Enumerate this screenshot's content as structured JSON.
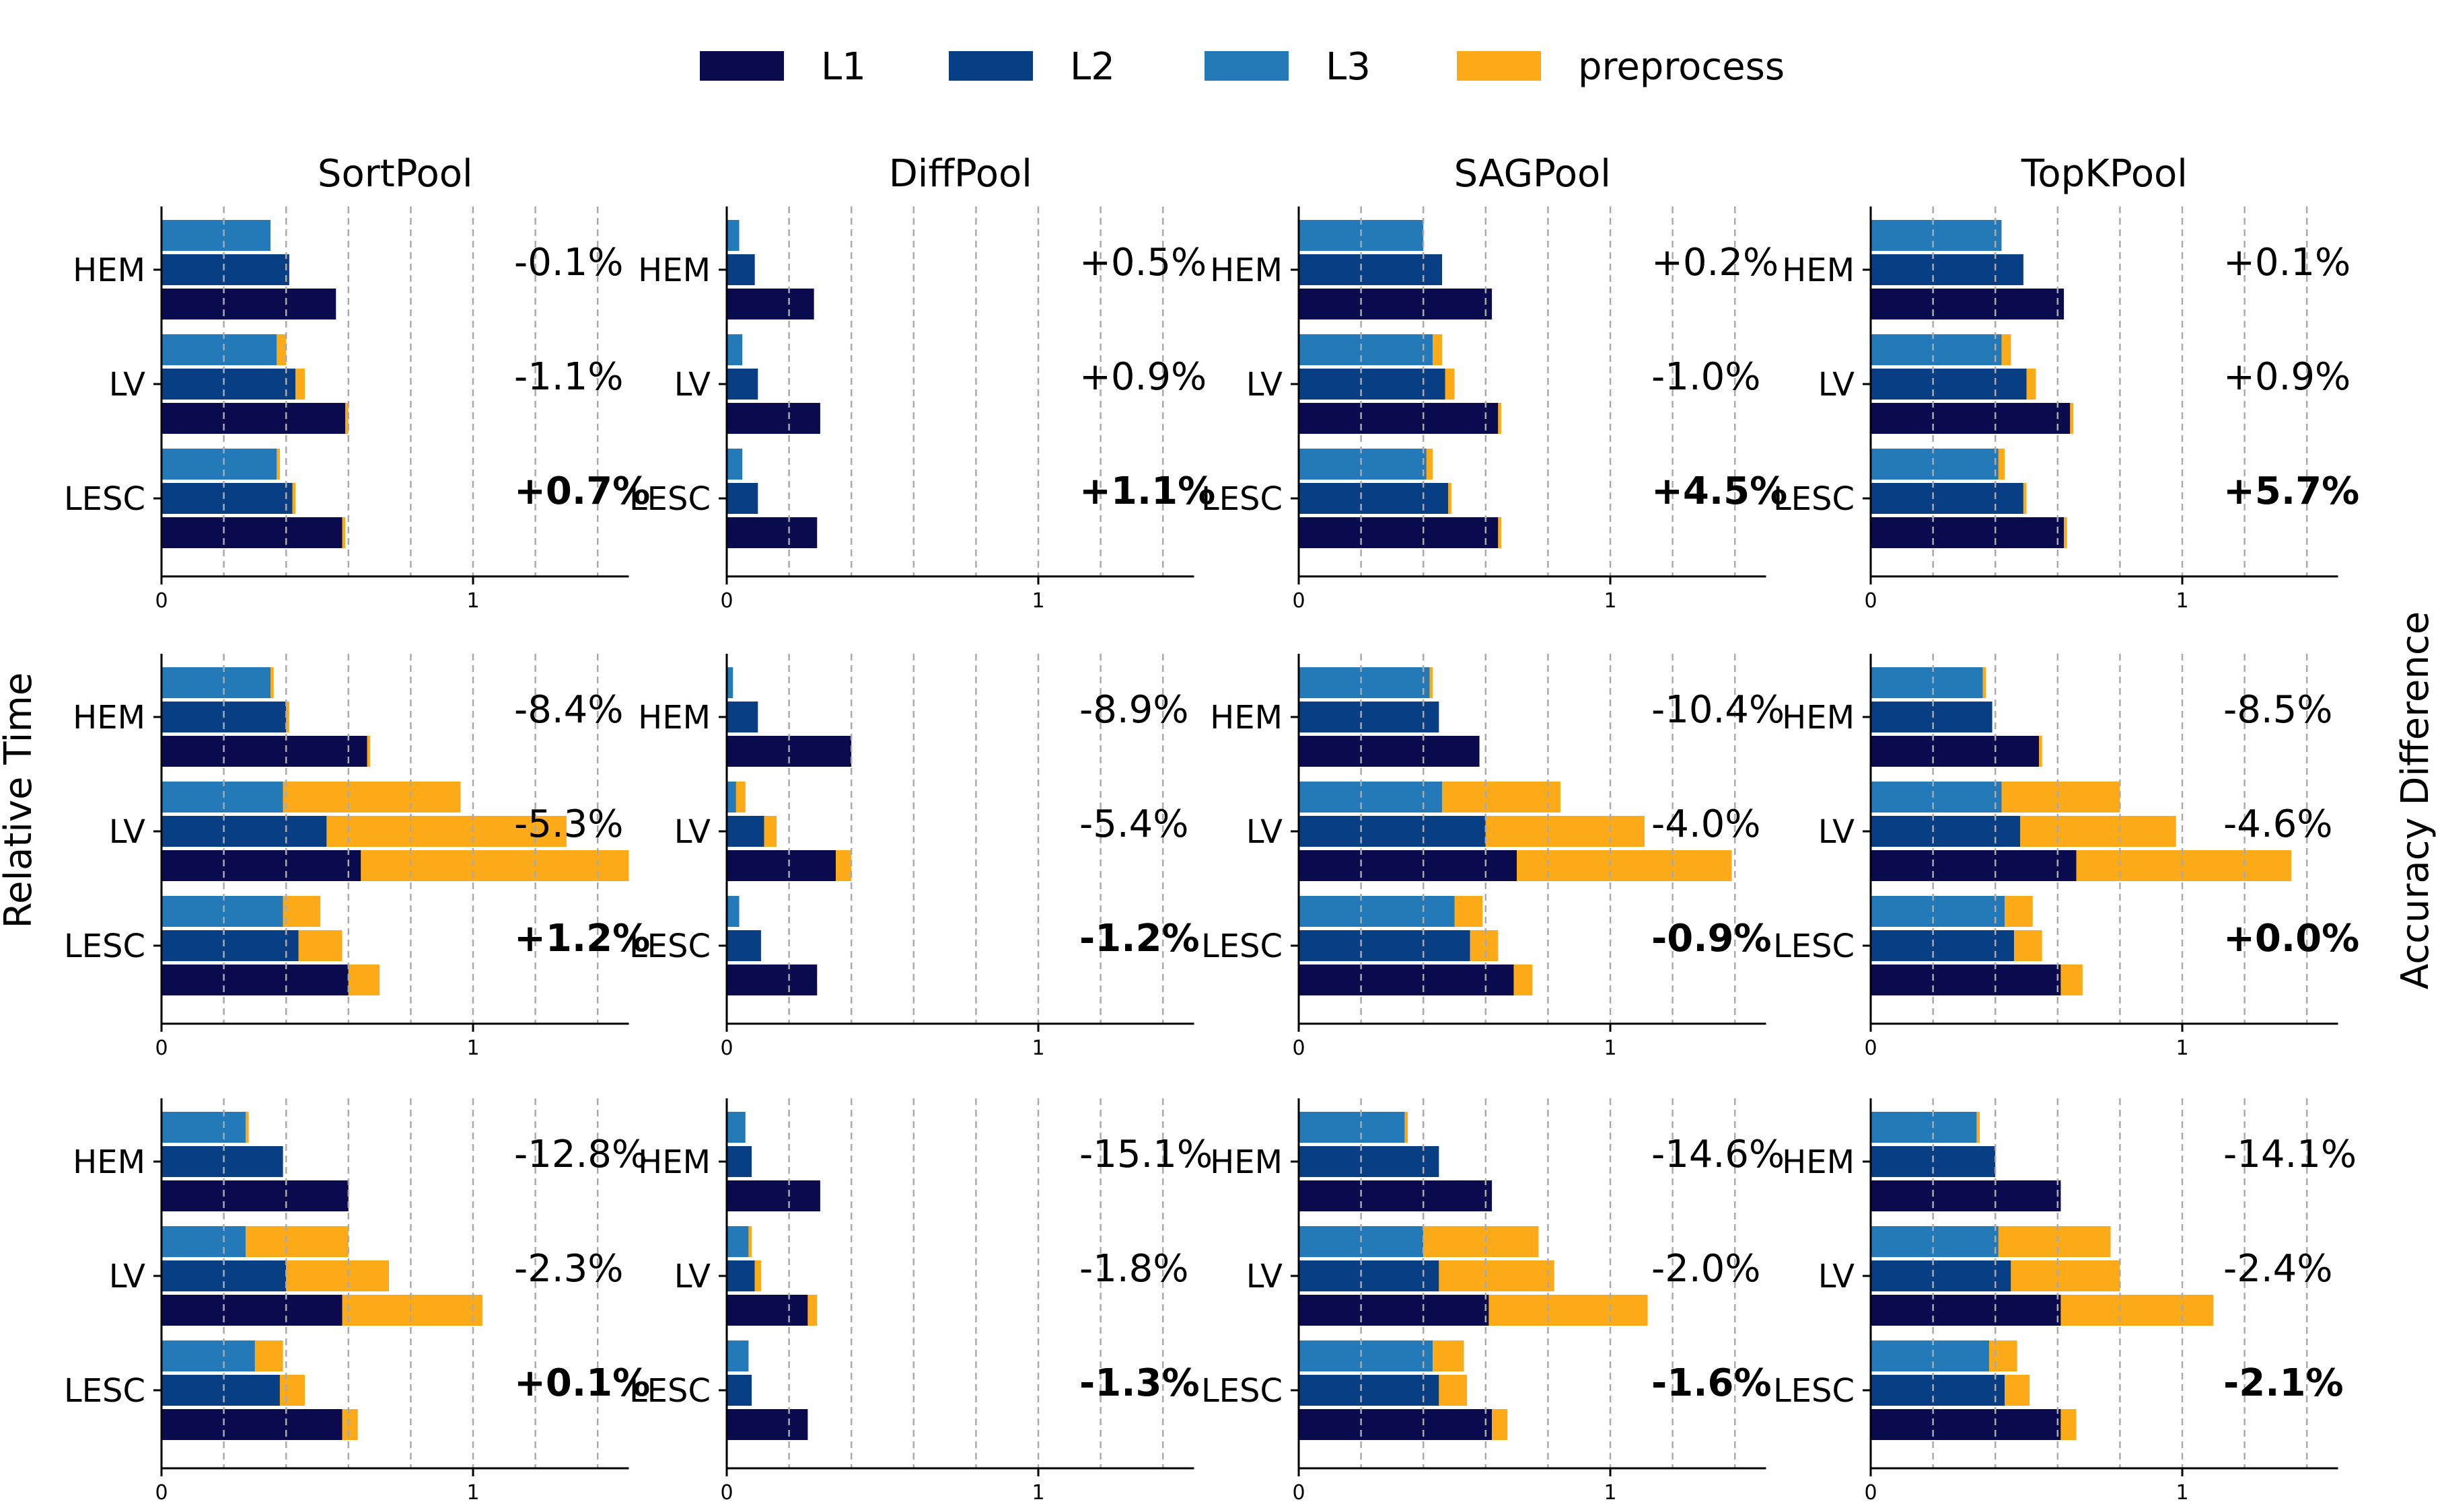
{
  "chart_data": {
    "type": "bar",
    "orientation": "horizontal",
    "stacked": true,
    "ylabel_left": "Relative Time",
    "ylabel_right": "Accuracy Difference",
    "legend": [
      {
        "name": "L1",
        "color": "#0a0a4f"
      },
      {
        "name": "L2",
        "color": "#073e84"
      },
      {
        "name": "L3",
        "color": "#2479b9"
      },
      {
        "name": "preprocess",
        "color": "#fcaa17"
      }
    ],
    "categories": [
      "HEM",
      "LV",
      "LESC"
    ],
    "layers": [
      "L3",
      "L2",
      "L1"
    ],
    "xlim": [
      0,
      1.5
    ],
    "xticks": [
      0,
      1
    ],
    "grid_x": [
      0.2,
      0.4,
      0.6,
      0.8,
      1.0,
      1.2,
      1.4
    ],
    "columns": [
      "SortPool",
      "DiffPool",
      "SAGPool",
      "TopKPool"
    ],
    "panels": [
      {
        "row": 0,
        "col": 0,
        "title": "SortPool",
        "bars": {
          "HEM": [
            [
              0.35,
              0
            ],
            [
              0.41,
              0
            ],
            [
              0.56,
              0
            ]
          ],
          "LV": [
            [
              0.37,
              0.03
            ],
            [
              0.43,
              0.03
            ],
            [
              0.59,
              0.01
            ]
          ],
          "LESC": [
            [
              0.37,
              0.01
            ],
            [
              0.42,
              0.01
            ],
            [
              0.58,
              0.01
            ]
          ]
        },
        "accuracy": [
          {
            "text": "-0.1%",
            "bold": false
          },
          {
            "text": "-1.1%",
            "bold": false
          },
          {
            "text": "+0.7%",
            "bold": true
          }
        ]
      },
      {
        "row": 0,
        "col": 1,
        "title": "DiffPool",
        "bars": {
          "HEM": [
            [
              0.04,
              0
            ],
            [
              0.09,
              0
            ],
            [
              0.28,
              0
            ]
          ],
          "LV": [
            [
              0.05,
              0
            ],
            [
              0.1,
              0
            ],
            [
              0.3,
              0
            ]
          ],
          "LESC": [
            [
              0.05,
              0
            ],
            [
              0.1,
              0
            ],
            [
              0.29,
              0
            ]
          ]
        },
        "accuracy": [
          {
            "text": "+0.5%",
            "bold": false
          },
          {
            "text": "+0.9%",
            "bold": false
          },
          {
            "text": "+1.1%",
            "bold": true
          }
        ]
      },
      {
        "row": 0,
        "col": 2,
        "title": "SAGPool",
        "bars": {
          "HEM": [
            [
              0.4,
              0
            ],
            [
              0.46,
              0
            ],
            [
              0.62,
              0
            ]
          ],
          "LV": [
            [
              0.43,
              0.03
            ],
            [
              0.47,
              0.03
            ],
            [
              0.64,
              0.01
            ]
          ],
          "LESC": [
            [
              0.41,
              0.02
            ],
            [
              0.48,
              0.01
            ],
            [
              0.64,
              0.01
            ]
          ]
        },
        "accuracy": [
          {
            "text": "+0.2%",
            "bold": false
          },
          {
            "text": "-1.0%",
            "bold": false
          },
          {
            "text": "+4.5%",
            "bold": true
          }
        ]
      },
      {
        "row": 0,
        "col": 3,
        "title": "TopKPool",
        "bars": {
          "HEM": [
            [
              0.42,
              0
            ],
            [
              0.49,
              0
            ],
            [
              0.62,
              0
            ]
          ],
          "LV": [
            [
              0.42,
              0.03
            ],
            [
              0.5,
              0.03
            ],
            [
              0.64,
              0.01
            ]
          ],
          "LESC": [
            [
              0.41,
              0.02
            ],
            [
              0.49,
              0.01
            ],
            [
              0.62,
              0.01
            ]
          ]
        },
        "accuracy": [
          {
            "text": "+0.1%",
            "bold": false
          },
          {
            "text": "+0.9%",
            "bold": false
          },
          {
            "text": "+5.7%",
            "bold": true
          }
        ]
      },
      {
        "row": 1,
        "col": 0,
        "title": "",
        "bars": {
          "HEM": [
            [
              0.35,
              0.01
            ],
            [
              0.4,
              0.01
            ],
            [
              0.66,
              0.01
            ]
          ],
          "LV": [
            [
              0.39,
              0.57
            ],
            [
              0.53,
              0.77
            ],
            [
              0.64,
              0.86
            ]
          ],
          "LESC": [
            [
              0.39,
              0.12
            ],
            [
              0.44,
              0.14
            ],
            [
              0.6,
              0.1
            ]
          ]
        },
        "accuracy": [
          {
            "text": "-8.4%",
            "bold": false
          },
          {
            "text": "-5.3%",
            "bold": false
          },
          {
            "text": "+1.2%",
            "bold": true
          }
        ]
      },
      {
        "row": 1,
        "col": 1,
        "title": "",
        "bars": {
          "HEM": [
            [
              0.02,
              0
            ],
            [
              0.1,
              0
            ],
            [
              0.4,
              0
            ]
          ],
          "LV": [
            [
              0.03,
              0.03
            ],
            [
              0.12,
              0.04
            ],
            [
              0.35,
              0.05
            ]
          ],
          "LESC": [
            [
              0.04,
              0
            ],
            [
              0.11,
              0
            ],
            [
              0.29,
              0
            ]
          ]
        },
        "accuracy": [
          {
            "text": "-8.9%",
            "bold": false
          },
          {
            "text": "-5.4%",
            "bold": false
          },
          {
            "text": "-1.2%",
            "bold": true
          }
        ]
      },
      {
        "row": 1,
        "col": 2,
        "title": "",
        "bars": {
          "HEM": [
            [
              0.42,
              0.01
            ],
            [
              0.45,
              0
            ],
            [
              0.58,
              0
            ]
          ],
          "LV": [
            [
              0.46,
              0.38
            ],
            [
              0.6,
              0.51
            ],
            [
              0.7,
              0.69
            ]
          ],
          "LESC": [
            [
              0.5,
              0.09
            ],
            [
              0.55,
              0.09
            ],
            [
              0.69,
              0.06
            ]
          ]
        },
        "accuracy": [
          {
            "text": "-10.4%",
            "bold": false
          },
          {
            "text": "-4.0%",
            "bold": false
          },
          {
            "text": "-0.9%",
            "bold": true
          }
        ]
      },
      {
        "row": 1,
        "col": 3,
        "title": "",
        "bars": {
          "HEM": [
            [
              0.36,
              0.01
            ],
            [
              0.39,
              0
            ],
            [
              0.54,
              0.01
            ]
          ],
          "LV": [
            [
              0.42,
              0.38
            ],
            [
              0.48,
              0.5
            ],
            [
              0.66,
              0.69
            ]
          ],
          "LESC": [
            [
              0.43,
              0.09
            ],
            [
              0.46,
              0.09
            ],
            [
              0.61,
              0.07
            ]
          ]
        },
        "accuracy": [
          {
            "text": "-8.5%",
            "bold": false
          },
          {
            "text": "-4.6%",
            "bold": false
          },
          {
            "text": "+0.0%",
            "bold": true
          }
        ]
      },
      {
        "row": 2,
        "col": 0,
        "title": "",
        "bars": {
          "HEM": [
            [
              0.27,
              0.01
            ],
            [
              0.39,
              0
            ],
            [
              0.6,
              0
            ]
          ],
          "LV": [
            [
              0.27,
              0.33
            ],
            [
              0.4,
              0.33
            ],
            [
              0.58,
              0.45
            ]
          ],
          "LESC": [
            [
              0.3,
              0.09
            ],
            [
              0.38,
              0.08
            ],
            [
              0.58,
              0.05
            ]
          ]
        },
        "accuracy": [
          {
            "text": "-12.8%",
            "bold": false
          },
          {
            "text": "-2.3%",
            "bold": false
          },
          {
            "text": "+0.1%",
            "bold": true
          }
        ]
      },
      {
        "row": 2,
        "col": 1,
        "title": "",
        "bars": {
          "HEM": [
            [
              0.06,
              0
            ],
            [
              0.08,
              0
            ],
            [
              0.3,
              0
            ]
          ],
          "LV": [
            [
              0.07,
              0.01
            ],
            [
              0.09,
              0.02
            ],
            [
              0.26,
              0.03
            ]
          ],
          "LESC": [
            [
              0.07,
              0
            ],
            [
              0.08,
              0
            ],
            [
              0.26,
              0
            ]
          ]
        },
        "accuracy": [
          {
            "text": "-15.1%",
            "bold": false
          },
          {
            "text": "-1.8%",
            "bold": false
          },
          {
            "text": "-1.3%",
            "bold": true
          }
        ]
      },
      {
        "row": 2,
        "col": 2,
        "title": "",
        "bars": {
          "HEM": [
            [
              0.34,
              0.01
            ],
            [
              0.45,
              0
            ],
            [
              0.62,
              0
            ]
          ],
          "LV": [
            [
              0.4,
              0.37
            ],
            [
              0.45,
              0.37
            ],
            [
              0.61,
              0.51
            ]
          ],
          "LESC": [
            [
              0.43,
              0.1
            ],
            [
              0.45,
              0.09
            ],
            [
              0.62,
              0.05
            ]
          ]
        },
        "accuracy": [
          {
            "text": "-14.6%",
            "bold": false
          },
          {
            "text": "-2.0%",
            "bold": false
          },
          {
            "text": "-1.6%",
            "bold": true
          }
        ]
      },
      {
        "row": 2,
        "col": 3,
        "title": "",
        "bars": {
          "HEM": [
            [
              0.34,
              0.01
            ],
            [
              0.4,
              0
            ],
            [
              0.61,
              0
            ]
          ],
          "LV": [
            [
              0.41,
              0.36
            ],
            [
              0.45,
              0.35
            ],
            [
              0.61,
              0.49
            ]
          ],
          "LESC": [
            [
              0.38,
              0.09
            ],
            [
              0.43,
              0.08
            ],
            [
              0.61,
              0.05
            ]
          ]
        },
        "accuracy": [
          {
            "text": "-14.1%",
            "bold": false
          },
          {
            "text": "-2.4%",
            "bold": false
          },
          {
            "text": "-2.1%",
            "bold": true
          }
        ]
      }
    ]
  }
}
